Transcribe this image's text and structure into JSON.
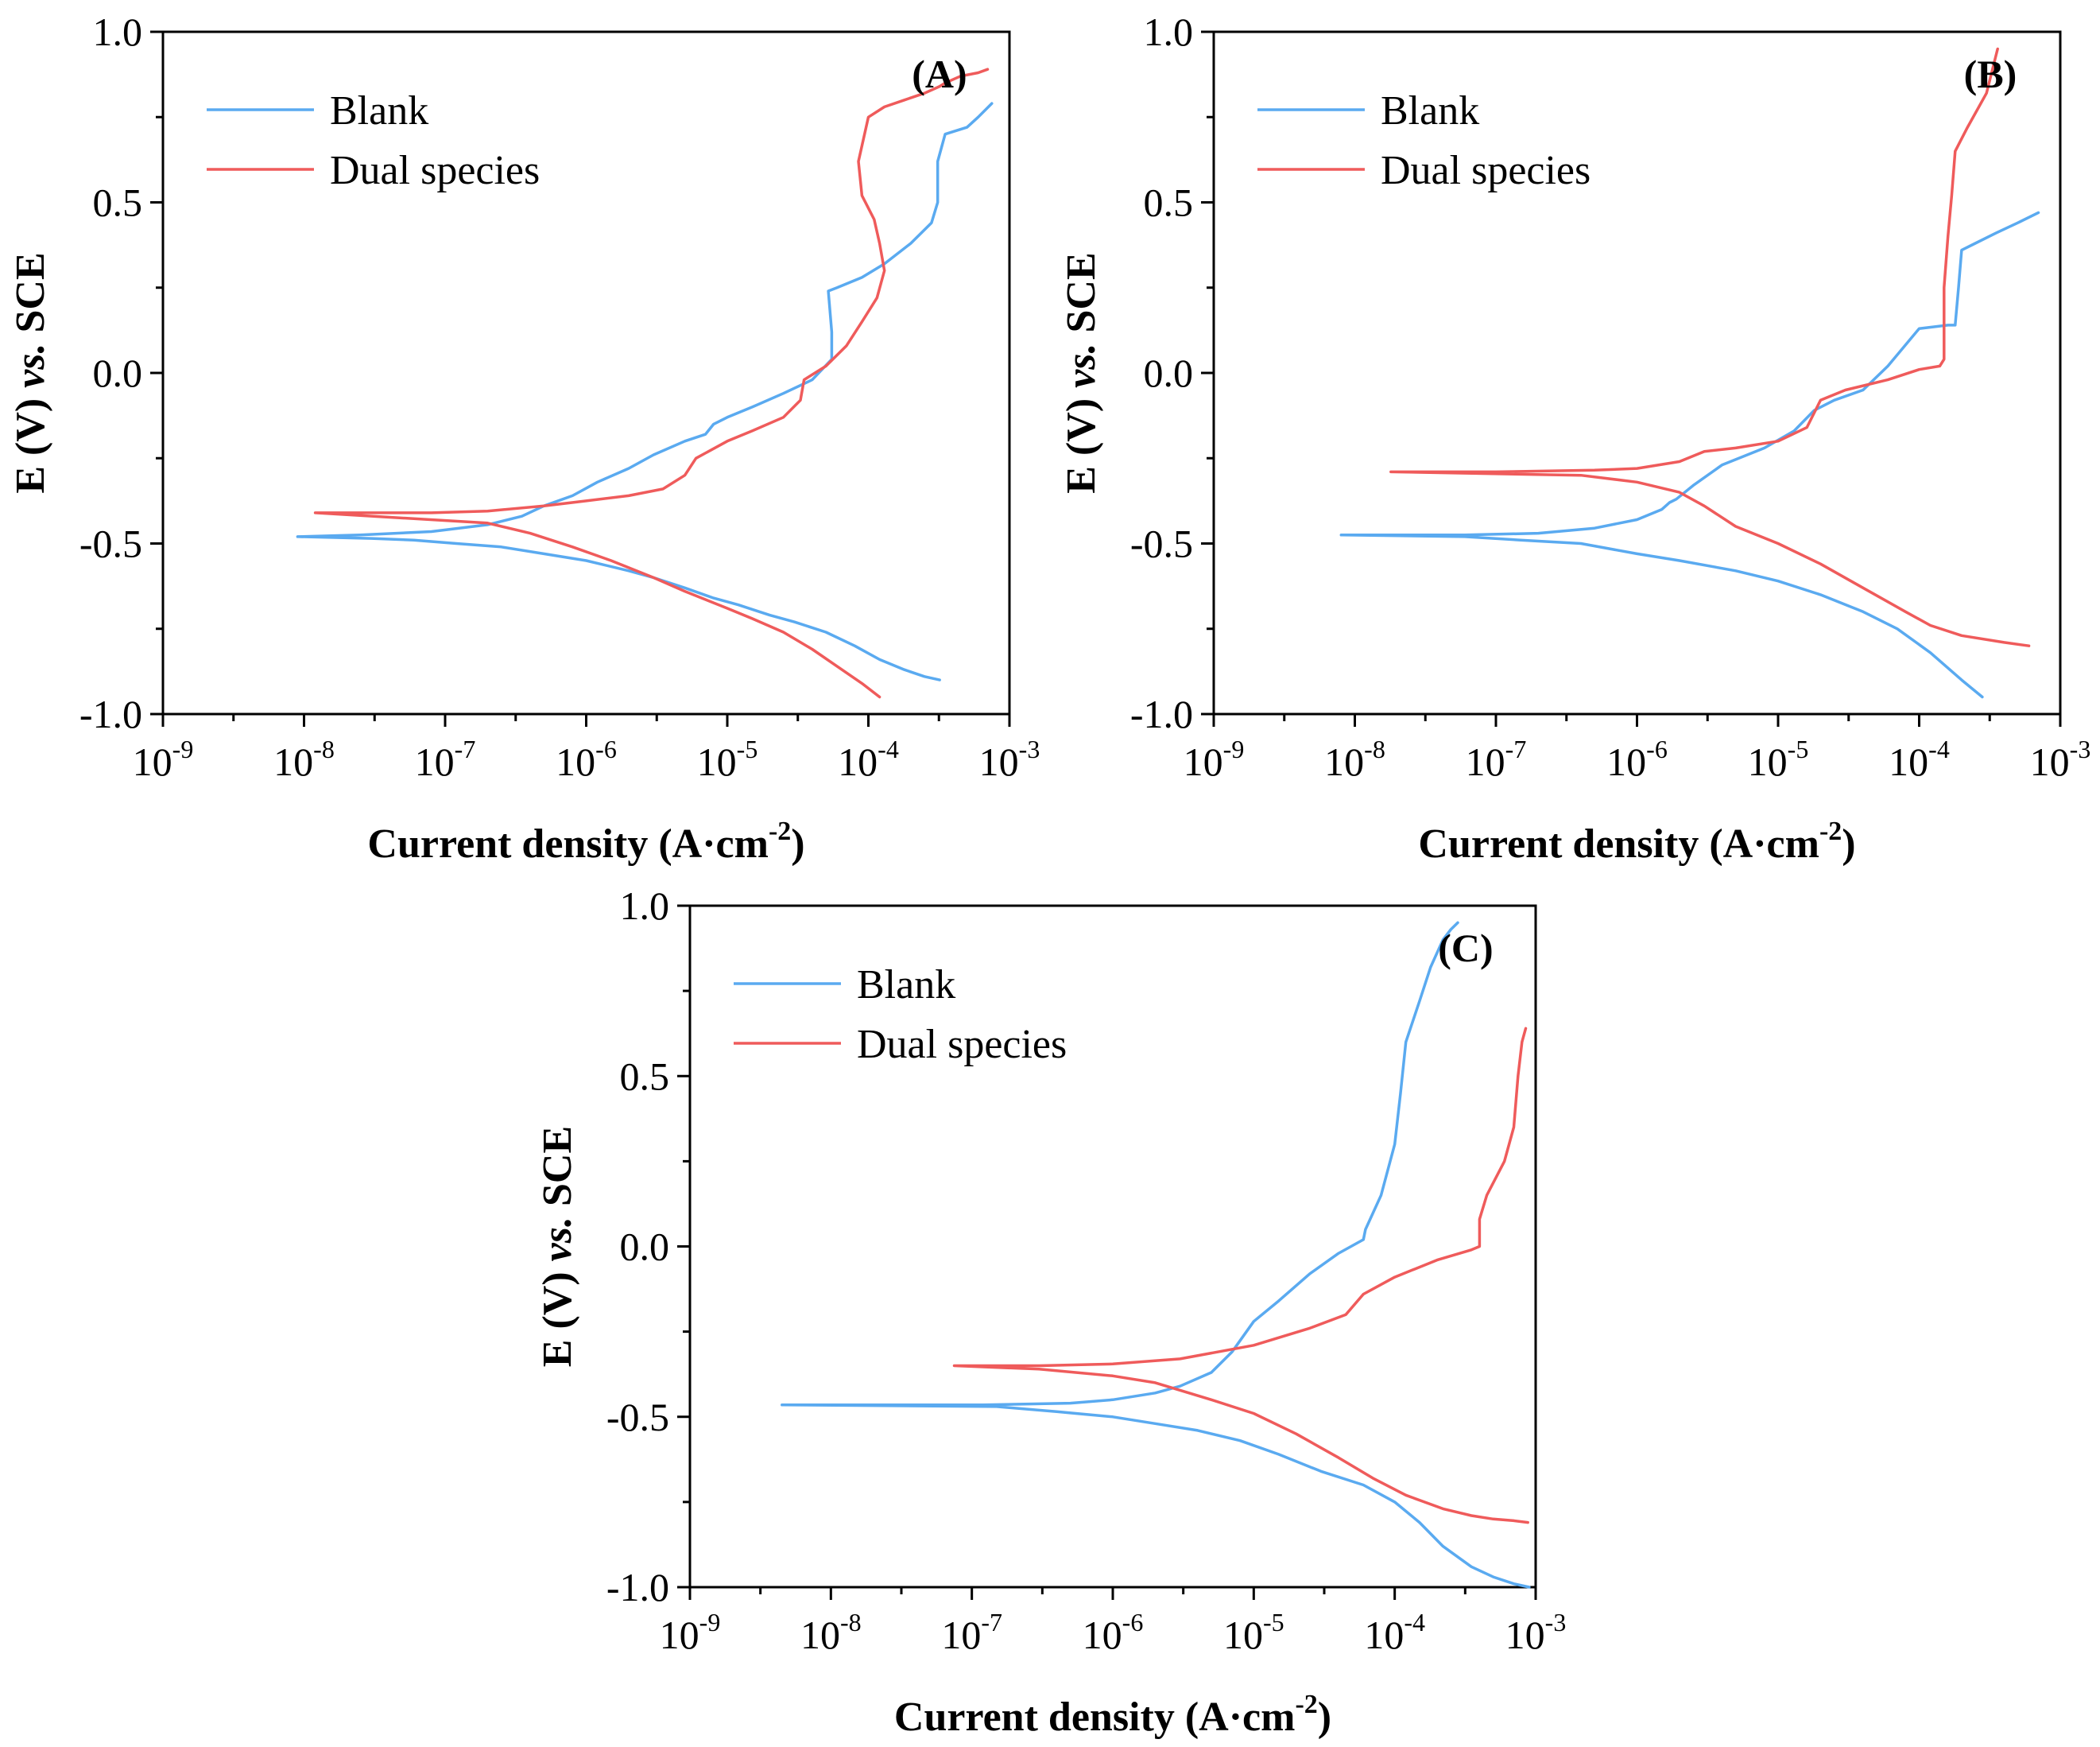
{
  "colors": {
    "blank": "#5aaaf0",
    "dual": "#ef5b5b"
  },
  "chart_data": [
    {
      "type": "line",
      "panel_label": "(A)",
      "xlabel": {
        "main": "Current density (A·cm",
        "sup": "-2",
        "end": ")"
      },
      "ylabel": {
        "pre": "E (V) ",
        "ital": "vs.",
        "post": " SCE"
      },
      "x_scale": "log",
      "xlim": [
        1e-09,
        0.001
      ],
      "ylim": [
        -1.0,
        1.0
      ],
      "x_ticks": [
        {
          "base": "10",
          "exp": "-9"
        },
        {
          "base": "10",
          "exp": "-8"
        },
        {
          "base": "10",
          "exp": "-7"
        },
        {
          "base": "10",
          "exp": "-6"
        },
        {
          "base": "10",
          "exp": "-5"
        },
        {
          "base": "10",
          "exp": "-4"
        },
        {
          "base": "10",
          "exp": "-3"
        }
      ],
      "y_ticks": [
        "-1.0",
        "-0.5",
        "0.0",
        "0.5",
        "1.0"
      ],
      "legend": "top-left",
      "series": [
        {
          "name": "Blank",
          "color_key": "blank",
          "x": [
            0.00032,
            0.00025,
            0.00018,
            0.00012,
            8e-05,
            5e-05,
            3e-05,
            2e-05,
            1.2e-05,
            8e-06,
            5e-06,
            3e-06,
            2e-06,
            1e-06,
            5e-07,
            2.5e-07,
            1.2e-07,
            6e-08,
            3e-08,
            9e-09,
            2.5e-08,
            8e-08,
            2e-07,
            3.5e-07,
            5e-07,
            8e-07,
            1.2e-06,
            2e-06,
            3e-06,
            5e-06,
            7e-06,
            8e-06,
            1e-05,
            1.5e-05,
            2.5e-05,
            4e-05,
            5.5e-05,
            5.5e-05,
            5.2e-05,
            6e-05,
            9e-05,
            0.00013,
            0.0002,
            0.00028,
            0.00031,
            0.00031,
            0.00035,
            0.0005,
            0.0006,
            0.00075
          ],
          "y": [
            -0.9,
            -0.89,
            -0.87,
            -0.84,
            -0.8,
            -0.76,
            -0.73,
            -0.71,
            -0.68,
            -0.66,
            -0.63,
            -0.6,
            -0.58,
            -0.55,
            -0.53,
            -0.51,
            -0.5,
            -0.49,
            -0.485,
            -0.48,
            -0.475,
            -0.465,
            -0.445,
            -0.42,
            -0.39,
            -0.36,
            -0.32,
            -0.28,
            -0.24,
            -0.2,
            -0.18,
            -0.15,
            -0.13,
            -0.1,
            -0.06,
            -0.02,
            0.04,
            0.12,
            0.24,
            0.25,
            0.28,
            0.32,
            0.38,
            0.44,
            0.5,
            0.62,
            0.7,
            0.72,
            0.75,
            0.79
          ]
        },
        {
          "name": "Dual species",
          "color_key": "dual",
          "x": [
            0.00012,
            9e-05,
            6e-05,
            4e-05,
            2.5e-05,
            1.5e-05,
            1e-05,
            5e-06,
            3e-06,
            1.5e-06,
            8e-07,
            4e-07,
            2e-07,
            1.2e-08,
            8e-08,
            2e-07,
            5e-07,
            1e-06,
            2e-06,
            3.5e-06,
            5e-06,
            6e-06,
            1e-05,
            1.5e-05,
            2.5e-05,
            3.3e-05,
            3.5e-05,
            5e-05,
            7e-05,
            9e-05,
            0.000115,
            0.00013,
            0.00012,
            0.00011,
            9e-05,
            8.5e-05,
            0.0001,
            0.00013,
            0.00018,
            0.00025,
            0.00032,
            0.00035,
            0.00045,
            0.0006,
            0.0007
          ],
          "y": [
            -0.95,
            -0.91,
            -0.86,
            -0.81,
            -0.76,
            -0.72,
            -0.69,
            -0.64,
            -0.6,
            -0.55,
            -0.51,
            -0.47,
            -0.44,
            -0.41,
            -0.41,
            -0.405,
            -0.39,
            -0.375,
            -0.36,
            -0.34,
            -0.3,
            -0.25,
            -0.2,
            -0.17,
            -0.13,
            -0.08,
            -0.02,
            0.02,
            0.08,
            0.15,
            0.22,
            0.3,
            0.38,
            0.45,
            0.52,
            0.62,
            0.75,
            0.78,
            0.8,
            0.82,
            0.84,
            0.85,
            0.87,
            0.88,
            0.89
          ]
        }
      ]
    },
    {
      "type": "line",
      "panel_label": "(B)",
      "xlabel": {
        "main": "Current density (A·cm",
        "sup": "-2",
        "end": ")"
      },
      "ylabel": {
        "pre": "E (V) ",
        "ital": "vs.",
        "post": " SCE"
      },
      "x_scale": "log",
      "xlim": [
        1e-09,
        0.001
      ],
      "ylim": [
        -1.0,
        1.0
      ],
      "x_ticks": [
        {
          "base": "10",
          "exp": "-9"
        },
        {
          "base": "10",
          "exp": "-8"
        },
        {
          "base": "10",
          "exp": "-7"
        },
        {
          "base": "10",
          "exp": "-6"
        },
        {
          "base": "10",
          "exp": "-5"
        },
        {
          "base": "10",
          "exp": "-4"
        },
        {
          "base": "10",
          "exp": "-3"
        }
      ],
      "y_ticks": [
        "-1.0",
        "-0.5",
        "0.0",
        "0.5",
        "1.0"
      ],
      "legend": "top-left",
      "series": [
        {
          "name": "Blank",
          "color_key": "blank",
          "x": [
            0.00028,
            0.0002,
            0.00012,
            7e-05,
            4e-05,
            2e-05,
            1e-05,
            5e-06,
            2e-06,
            1e-06,
            4e-07,
            1.5e-07,
            6e-08,
            8e-09,
            6e-08,
            2e-07,
            5e-07,
            1e-06,
            1.5e-06,
            1.7e-06,
            1.9e-06,
            2.5e-06,
            4e-06,
            8e-06,
            1.3e-05,
            1.8e-05,
            2.5e-05,
            4e-05,
            6e-05,
            0.0001,
            0.00016,
            0.00018,
            0.00019,
            0.0002,
            0.00025,
            0.00035,
            0.0005,
            0.0007
          ],
          "y": [
            -0.95,
            -0.9,
            -0.82,
            -0.75,
            -0.7,
            -0.65,
            -0.61,
            -0.58,
            -0.55,
            -0.53,
            -0.5,
            -0.49,
            -0.48,
            -0.475,
            -0.475,
            -0.47,
            -0.455,
            -0.43,
            -0.4,
            -0.38,
            -0.37,
            -0.33,
            -0.27,
            -0.22,
            -0.17,
            -0.11,
            -0.08,
            -0.05,
            0.02,
            0.13,
            0.14,
            0.14,
            0.25,
            0.36,
            0.38,
            0.41,
            0.44,
            0.47
          ]
        },
        {
          "name": "Dual species",
          "color_key": "dual",
          "x": [
            0.0006,
            0.0004,
            0.0002,
            0.00012,
            8e-05,
            4e-05,
            2e-05,
            1e-05,
            5e-06,
            3e-06,
            2e-06,
            1e-06,
            4e-07,
            1.8e-08,
            1e-07,
            5e-07,
            1e-06,
            2e-06,
            3e-06,
            5e-06,
            1e-05,
            1.6e-05,
            2e-05,
            3e-05,
            6e-05,
            0.0001,
            0.00014,
            0.00015,
            0.00015,
            0.00016,
            0.00017,
            0.00018,
            0.00022,
            0.0003,
            0.00036
          ],
          "y": [
            -0.8,
            -0.79,
            -0.77,
            -0.74,
            -0.7,
            -0.63,
            -0.56,
            -0.5,
            -0.45,
            -0.39,
            -0.35,
            -0.32,
            -0.3,
            -0.29,
            -0.29,
            -0.285,
            -0.28,
            -0.26,
            -0.23,
            -0.22,
            -0.2,
            -0.16,
            -0.08,
            -0.05,
            -0.02,
            0.01,
            0.02,
            0.04,
            0.25,
            0.4,
            0.52,
            0.65,
            0.72,
            0.82,
            0.95
          ]
        }
      ]
    },
    {
      "type": "line",
      "panel_label": "(C)",
      "xlabel": {
        "main": "Current density (A·cm",
        "sup": "-2",
        "end": ")"
      },
      "ylabel": {
        "pre": "E (V) ",
        "ital": "vs.",
        "post": " SCE"
      },
      "x_scale": "log",
      "xlim": [
        1e-09,
        0.001
      ],
      "ylim": [
        -1.0,
        1.0
      ],
      "x_ticks": [
        {
          "base": "10",
          "exp": "-9"
        },
        {
          "base": "10",
          "exp": "-8"
        },
        {
          "base": "10",
          "exp": "-7"
        },
        {
          "base": "10",
          "exp": "-6"
        },
        {
          "base": "10",
          "exp": "-5"
        },
        {
          "base": "10",
          "exp": "-4"
        },
        {
          "base": "10",
          "exp": "-3"
        }
      ],
      "y_ticks": [
        "-1.0",
        "-0.5",
        "0.0",
        "0.5",
        "1.0"
      ],
      "legend": "top-left",
      "series": [
        {
          "name": "Blank",
          "color_key": "blank",
          "x": [
            0.0009,
            0.0007,
            0.0005,
            0.00035,
            0.00022,
            0.00015,
            0.0001,
            6e-05,
            3e-05,
            1.5e-05,
            8e-06,
            4e-06,
            2e-06,
            1e-06,
            4e-07,
            1.5e-07,
            4.5e-09,
            1.2e-07,
            5e-07,
            1e-06,
            2e-06,
            3e-06,
            5e-06,
            7e-06,
            1e-05,
            1.5e-05,
            2.5e-05,
            4e-05,
            6e-05,
            6.2e-05,
            8e-05,
            0.0001,
            0.00011,
            0.00012,
            0.00015,
            0.00018,
            0.00022,
            0.00025,
            0.00028
          ],
          "y": [
            -1.0,
            -0.99,
            -0.97,
            -0.94,
            -0.88,
            -0.81,
            -0.75,
            -0.7,
            -0.66,
            -0.61,
            -0.57,
            -0.54,
            -0.52,
            -0.5,
            -0.485,
            -0.47,
            -0.465,
            -0.465,
            -0.46,
            -0.45,
            -0.43,
            -0.41,
            -0.37,
            -0.31,
            -0.22,
            -0.16,
            -0.08,
            -0.02,
            0.02,
            0.05,
            0.15,
            0.3,
            0.45,
            0.6,
            0.72,
            0.82,
            0.9,
            0.93,
            0.95
          ]
        },
        {
          "name": "Dual species",
          "color_key": "dual",
          "x": [
            0.00088,
            0.0007,
            0.0005,
            0.00035,
            0.00022,
            0.00012,
            7e-05,
            4e-05,
            2e-05,
            1e-05,
            5e-06,
            2e-06,
            1e-06,
            3e-07,
            7.5e-08,
            3e-07,
            1e-06,
            3e-06,
            1e-05,
            2.5e-05,
            4.5e-05,
            6e-05,
            0.0001,
            0.0002,
            0.00035,
            0.0004,
            0.0004,
            0.00045,
            0.0006,
            0.0007,
            0.00075,
            0.0008,
            0.00085
          ],
          "y": [
            -0.81,
            -0.805,
            -0.8,
            -0.79,
            -0.77,
            -0.73,
            -0.68,
            -0.62,
            -0.55,
            -0.49,
            -0.45,
            -0.4,
            -0.38,
            -0.36,
            -0.35,
            -0.35,
            -0.345,
            -0.33,
            -0.29,
            -0.24,
            -0.2,
            -0.14,
            -0.09,
            -0.04,
            -0.01,
            0.0,
            0.08,
            0.15,
            0.25,
            0.35,
            0.5,
            0.6,
            0.64
          ]
        }
      ]
    }
  ]
}
